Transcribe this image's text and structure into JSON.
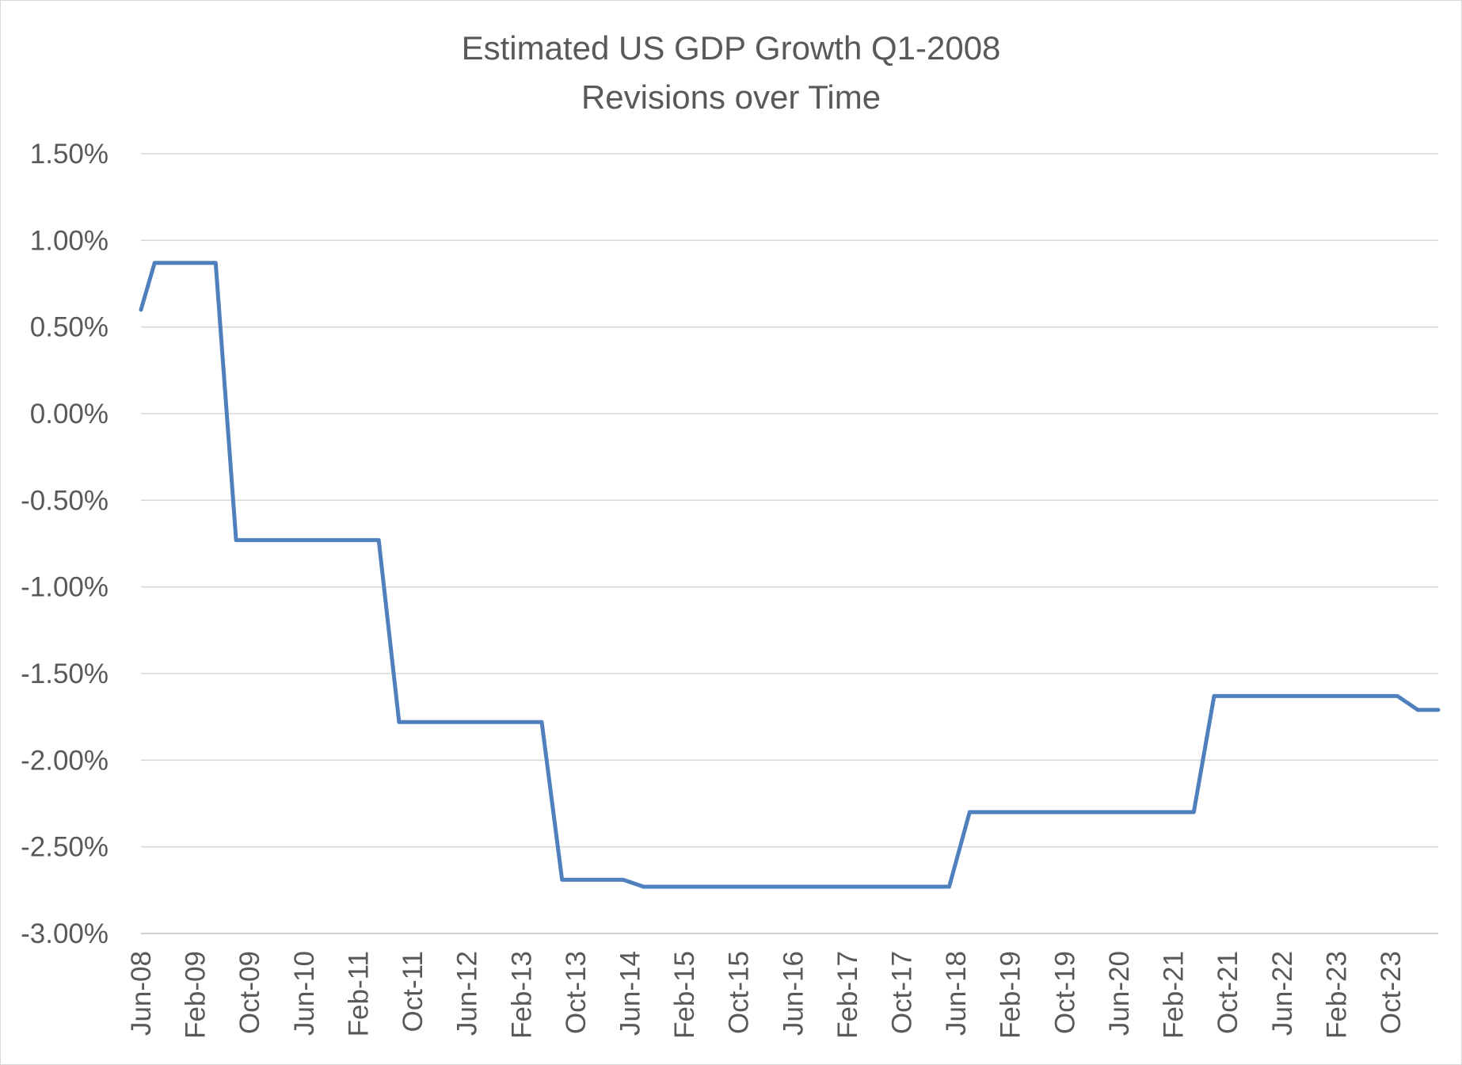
{
  "chart_data": {
    "type": "line",
    "title": "Estimated US GDP Growth Q1-2008",
    "subtitle": "Revisions over Time",
    "xlabel": "",
    "ylabel": "",
    "grid": true,
    "legend": "none",
    "y_ticks": [
      "1.50%",
      "1.00%",
      "0.50%",
      "0.00%",
      "-0.50%",
      "-1.00%",
      "-1.50%",
      "-2.00%",
      "-2.50%",
      "-3.00%"
    ],
    "ylim": [
      -3.0,
      1.5
    ],
    "xlim": [
      "2008-06",
      "2024-05"
    ],
    "x_ticks": [
      {
        "date": "2008-06",
        "label": "Jun-08"
      },
      {
        "date": "2009-02",
        "label": "Feb-09"
      },
      {
        "date": "2009-10",
        "label": "Oct-09"
      },
      {
        "date": "2010-06",
        "label": "Jun-10"
      },
      {
        "date": "2011-02",
        "label": "Feb-11"
      },
      {
        "date": "2011-10",
        "label": "Oct-11"
      },
      {
        "date": "2012-06",
        "label": "Jun-12"
      },
      {
        "date": "2013-02",
        "label": "Feb-13"
      },
      {
        "date": "2013-10",
        "label": "Oct-13"
      },
      {
        "date": "2014-06",
        "label": "Jun-14"
      },
      {
        "date": "2015-02",
        "label": "Feb-15"
      },
      {
        "date": "2015-10",
        "label": "Oct-15"
      },
      {
        "date": "2016-06",
        "label": "Jun-16"
      },
      {
        "date": "2017-02",
        "label": "Feb-17"
      },
      {
        "date": "2017-10",
        "label": "Oct-17"
      },
      {
        "date": "2018-06",
        "label": "Jun-18"
      },
      {
        "date": "2019-02",
        "label": "Feb-19"
      },
      {
        "date": "2019-10",
        "label": "Oct-19"
      },
      {
        "date": "2020-06",
        "label": "Jun-20"
      },
      {
        "date": "2021-02",
        "label": "Feb-21"
      },
      {
        "date": "2021-10",
        "label": "Oct-21"
      },
      {
        "date": "2022-06",
        "label": "Jun-22"
      },
      {
        "date": "2023-02",
        "label": "Feb-23"
      },
      {
        "date": "2023-10",
        "label": "Oct-23"
      }
    ],
    "series": [
      {
        "name": "",
        "color": "#4f7fbd",
        "points": [
          {
            "x": "2008-06",
            "y": 0.6
          },
          {
            "x": "2008-08",
            "y": 0.87
          },
          {
            "x": "2009-05",
            "y": 0.87
          },
          {
            "x": "2009-08",
            "y": -0.73
          },
          {
            "x": "2011-05",
            "y": -0.73
          },
          {
            "x": "2011-08",
            "y": -1.78
          },
          {
            "x": "2013-05",
            "y": -1.78
          },
          {
            "x": "2013-08",
            "y": -2.69
          },
          {
            "x": "2014-05",
            "y": -2.69
          },
          {
            "x": "2014-08",
            "y": -2.73
          },
          {
            "x": "2018-05",
            "y": -2.73
          },
          {
            "x": "2018-08",
            "y": -2.3
          },
          {
            "x": "2021-05",
            "y": -2.3
          },
          {
            "x": "2021-08",
            "y": -1.63
          },
          {
            "x": "2023-11",
            "y": -1.63
          },
          {
            "x": "2024-02",
            "y": -1.71
          },
          {
            "x": "2024-05",
            "y": -1.71
          }
        ]
      }
    ]
  }
}
